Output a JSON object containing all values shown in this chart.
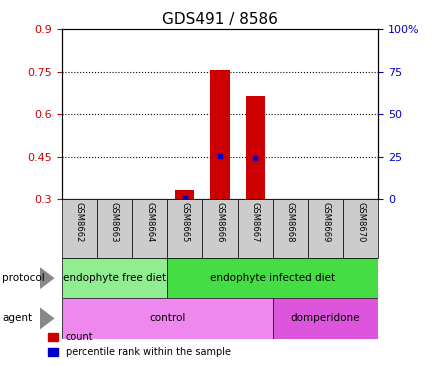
{
  "title": "GDS491 / 8586",
  "samples": [
    "GSM8662",
    "GSM8663",
    "GSM8664",
    "GSM8665",
    "GSM8666",
    "GSM8667",
    "GSM8668",
    "GSM8669",
    "GSM8670"
  ],
  "count_values": [
    0.0,
    0.0,
    0.0,
    0.335,
    0.755,
    0.665,
    0.0,
    0.0,
    0.0
  ],
  "percentile_values": [
    null,
    null,
    null,
    0.305,
    0.455,
    0.445,
    null,
    null,
    null
  ],
  "ylim_left": [
    0.3,
    0.9
  ],
  "ylim_right": [
    0,
    100
  ],
  "yticks_left": [
    0.3,
    0.45,
    0.6,
    0.75,
    0.9
  ],
  "yticks_right": [
    0,
    25,
    50,
    75,
    100
  ],
  "ytick_labels_left": [
    "0.3",
    "0.45",
    "0.6",
    "0.75",
    "0.9"
  ],
  "ytick_labels_right": [
    "0",
    "25",
    "50",
    "75",
    "100%"
  ],
  "dotted_lines": [
    0.45,
    0.6,
    0.75
  ],
  "protocol_groups": [
    {
      "label": "endophyte free diet",
      "start": 0,
      "end": 3,
      "color": "#90EE90"
    },
    {
      "label": "endophyte infected diet",
      "start": 3,
      "end": 9,
      "color": "#44DD44"
    }
  ],
  "agent_groups": [
    {
      "label": "control",
      "start": 0,
      "end": 6,
      "color": "#EE88EE"
    },
    {
      "label": "domperidone",
      "start": 6,
      "end": 9,
      "color": "#DD55DD"
    }
  ],
  "bar_color": "#CC0000",
  "percentile_color": "#0000CC",
  "bar_width": 0.55,
  "sample_bg_color": "#CCCCCC",
  "left_axis_color": "#CC0000",
  "right_axis_color": "#0000CC",
  "legend_count_color": "#CC0000",
  "legend_percentile_color": "#0000CC"
}
